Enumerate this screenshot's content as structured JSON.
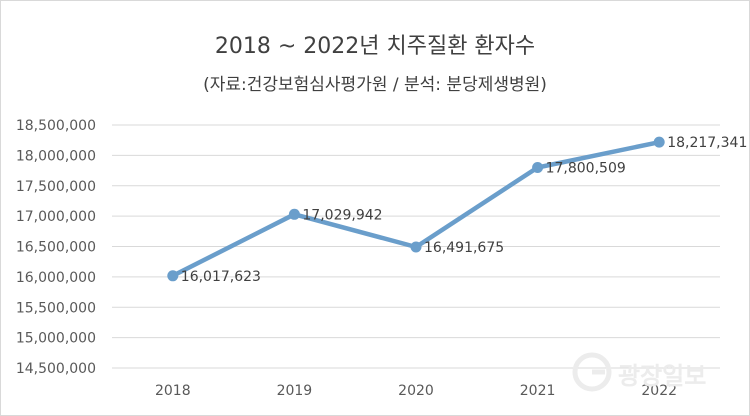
{
  "chart_data": {
    "type": "line",
    "title": "2018 ~ 2022년 치주질환 환자수",
    "subtitle": "(자료:건강보험심사평가원 / 분석: 분당제생병원)",
    "categories": [
      "2018",
      "2019",
      "2020",
      "2021",
      "2022"
    ],
    "series": [
      {
        "values": [
          16017623,
          17029942,
          16491675,
          17800509,
          18217341
        ],
        "labels": [
          "16,017,623",
          "17,029,942",
          "16,491,675",
          "17,800,509",
          "18,217,341"
        ]
      }
    ],
    "ylim": [
      14500000,
      18500000
    ],
    "yticks": [
      14500000,
      15000000,
      15500000,
      16000000,
      16500000,
      17000000,
      17500000,
      18000000,
      18500000
    ],
    "ytick_labels": [
      "14,500,000",
      "15,000,000",
      "15,500,000",
      "16,000,000",
      "16,500,000",
      "17,000,000",
      "17,500,000",
      "18,000,000",
      "18,500,000"
    ],
    "grid": true,
    "line_color": "#6a9ecb",
    "grid_color": "#d9d9d9"
  },
  "watermark": {
    "text": "광장일보"
  }
}
